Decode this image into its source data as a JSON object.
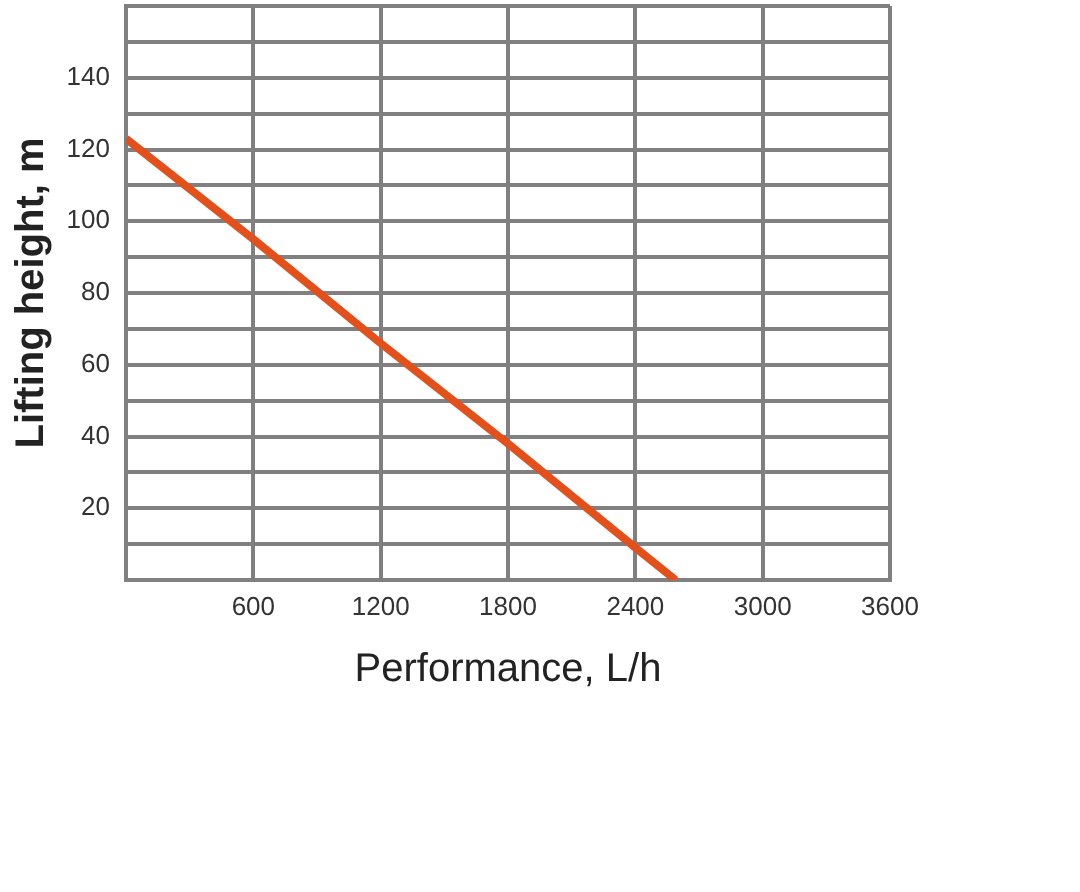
{
  "chart_data": {
    "type": "line",
    "xlabel": "Performance, L/h",
    "ylabel": "Lifting height, m",
    "x": [
      0,
      600,
      1200,
      1800,
      2400,
      2590
    ],
    "series": [
      {
        "color": "#e2501c",
        "values": [
          123,
          95,
          66,
          38,
          9,
          0
        ]
      }
    ],
    "xlim": [
      0,
      3600
    ],
    "xticks": [
      600,
      1200,
      1800,
      2400,
      3000,
      3600
    ],
    "ylim": [
      0,
      160
    ],
    "yticks": [
      {
        "value": 0,
        "label": null
      },
      {
        "value": 10,
        "label": null
      },
      20,
      {
        "value": 30,
        "label": null
      },
      40,
      {
        "value": 50,
        "label": null
      },
      60,
      {
        "value": 70,
        "label": null
      },
      80,
      {
        "value": 90,
        "label": null
      },
      100,
      {
        "value": 110,
        "label": null
      },
      120,
      {
        "value": 130,
        "label": null
      },
      140,
      {
        "value": 150,
        "label": null
      },
      {
        "value": 160,
        "label": null
      }
    ],
    "grid": true,
    "legend": false,
    "marker": "none"
  }
}
